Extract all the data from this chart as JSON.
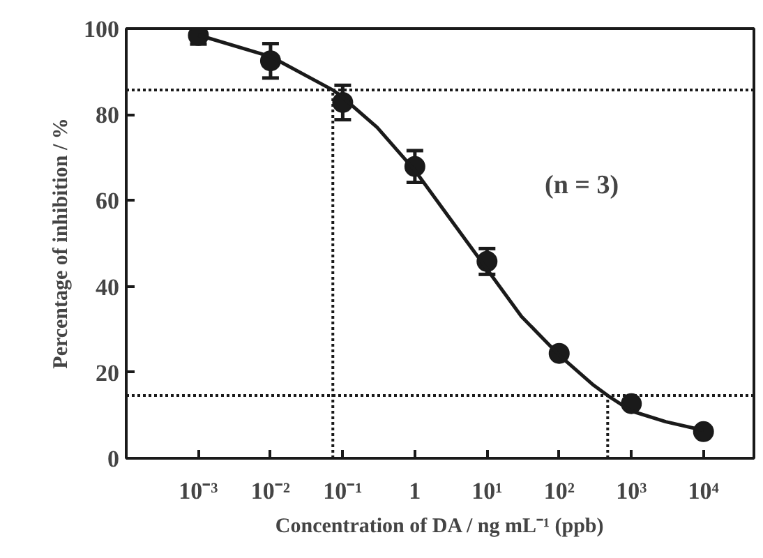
{
  "chart_data": {
    "type": "scatter",
    "xlabel": "Concentration of DA / ng mL⁻¹ (ppb)",
    "ylabel": "Percentage of inhibition / %",
    "log": "x",
    "xlim": [
      0.0001,
      50000
    ],
    "xticks": [
      {
        "value": 0.001,
        "label": "10⁻³"
      },
      {
        "value": 0.01,
        "label": "10⁻²"
      },
      {
        "value": 0.1,
        "label": "10⁻¹"
      },
      1,
      {
        "value": 10,
        "label": "10¹"
      },
      {
        "value": 100,
        "label": "10²"
      },
      {
        "value": 1000,
        "label": "10³"
      },
      {
        "value": 10000,
        "label": "10⁴"
      }
    ],
    "ylim": [
      0,
      100
    ],
    "yticks": [
      0,
      20,
      40,
      60,
      80,
      100
    ],
    "grid": false,
    "marker": "circle",
    "series": [
      {
        "color": "#1a1a1a",
        "x": [
          0.001,
          0.01,
          0.1,
          1,
          10,
          100,
          1000,
          10000
        ],
        "values": [
          98.4,
          92.5,
          82.8,
          67.9,
          45.8,
          24.4,
          12.7,
          6.2
        ],
        "errors": [
          2,
          4,
          4,
          3.7,
          3,
          null,
          null,
          null
        ]
      },
      {
        "type": "line",
        "marker": "none",
        "color": "#1a1a1a",
        "line_style": "solid",
        "x": [
          0.001,
          0.01,
          0.073,
          0.1,
          0.3,
          1,
          3,
          10,
          30,
          100,
          300,
          470,
          1000,
          3000,
          10000
        ],
        "values": [
          98.5,
          93.5,
          85.7,
          84,
          77,
          67,
          56,
          44,
          33,
          24,
          17,
          14.6,
          11,
          8.5,
          6.5
        ]
      }
    ],
    "ref_lines": [
      {
        "axis": "y",
        "value": 85.7,
        "color": "#1a1a1a",
        "line_style": "dotted"
      },
      {
        "axis": "y",
        "value": 14.6,
        "color": "#1a1a1a",
        "line_style": "dotted"
      },
      {
        "axis": "x",
        "value": 0.073,
        "color": "#1a1a1a",
        "line_style": "dotted"
      },
      {
        "axis": "x",
        "value": 470,
        "color": "#1a1a1a",
        "line_style": "dotted"
      }
    ],
    "annotations": [
      "(n = 3)"
    ]
  }
}
